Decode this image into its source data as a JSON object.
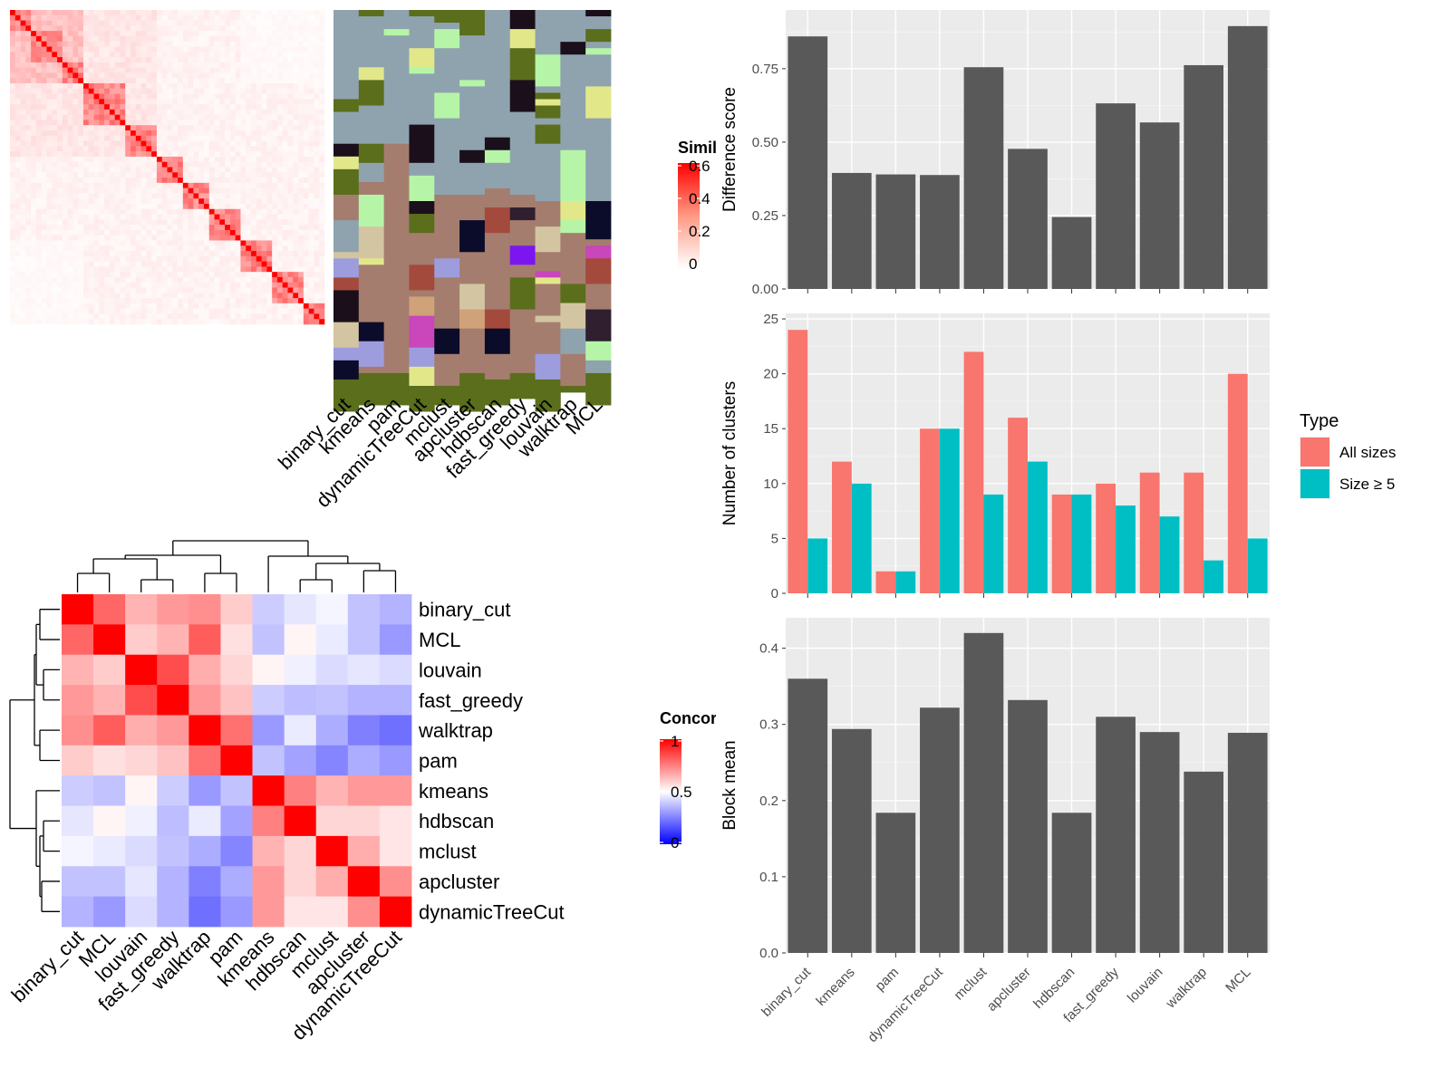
{
  "methods_bar": [
    "binary_cut",
    "kmeans",
    "pam",
    "dynamicTreeCut",
    "mclust",
    "apcluster",
    "hdbscan",
    "fast_greedy",
    "louvain",
    "walktrap",
    "MCL"
  ],
  "methods_top": [
    "binary_cut",
    "kmeans",
    "pam",
    "dynamicTreeCut",
    "mclust",
    "apcluster",
    "hdbscan",
    "fast_greedy",
    "louvain",
    "walktrap",
    "MCL"
  ],
  "methods_concordance": [
    "binary_cut",
    "MCL",
    "louvain",
    "fast_greedy",
    "walktrap",
    "pam",
    "kmeans",
    "hdbscan",
    "mclust",
    "apcluster",
    "dynamicTreeCut"
  ],
  "similarity_legend": {
    "title": "Similarity",
    "ticks": [
      "0.6",
      "0.4",
      "0.2",
      "0"
    ]
  },
  "concordance_legend": {
    "title": "Concordance",
    "ticks": [
      "1",
      "0.5",
      "0"
    ]
  },
  "type_legend": {
    "title": "Type",
    "items": [
      {
        "label": "All sizes",
        "color": "#F8766D"
      },
      {
        "label": "Size ≥ 5",
        "color": "#00BFC4"
      }
    ]
  },
  "chart_data": [
    {
      "type": "heatmap",
      "title": "",
      "description_matrix": "similarity matrix",
      "color_scale": {
        "low": "#ffffff",
        "high": "#ff0000",
        "range": [
          0,
          0.6
        ]
      }
    },
    {
      "type": "heatmap",
      "title": "",
      "columns": [
        "binary_cut",
        "kmeans",
        "pam",
        "dynamicTreeCut",
        "mclust",
        "apcluster",
        "hdbscan",
        "fast_greedy",
        "louvain",
        "walktrap",
        "MCL"
      ]
    },
    {
      "type": "bar",
      "ylabel": "Difference score",
      "categories": [
        "binary_cut",
        "kmeans",
        "pam",
        "dynamicTreeCut",
        "mclust",
        "apcluster",
        "hdbscan",
        "fast_greedy",
        "louvain",
        "walktrap",
        "MCL"
      ],
      "values": [
        0.86,
        0.395,
        0.39,
        0.388,
        0.755,
        0.477,
        0.245,
        0.632,
        0.567,
        0.762,
        0.895
      ],
      "ylim": [
        0,
        0.95
      ],
      "yticks": [
        "0.00",
        "0.25",
        "0.50",
        "0.75"
      ]
    },
    {
      "type": "bar",
      "ylabel": "Number of clusters",
      "categories": [
        "binary_cut",
        "kmeans",
        "pam",
        "dynamicTreeCut",
        "mclust",
        "apcluster",
        "hdbscan",
        "fast_greedy",
        "louvain",
        "walktrap",
        "MCL"
      ],
      "series": [
        {
          "name": "All sizes",
          "values": [
            24,
            12,
            2,
            15,
            22,
            16,
            9,
            10,
            11,
            11,
            20
          ]
        },
        {
          "name": "Size ≥ 5",
          "values": [
            5,
            10,
            2,
            15,
            9,
            12,
            9,
            8,
            7,
            3,
            5
          ]
        }
      ],
      "ylim": [
        0,
        25.5
      ],
      "yticks": [
        "0",
        "5",
        "10",
        "15",
        "20",
        "25"
      ]
    },
    {
      "type": "bar",
      "ylabel": "Block mean",
      "categories": [
        "binary_cut",
        "kmeans",
        "pam",
        "dynamicTreeCut",
        "mclust",
        "apcluster",
        "hdbscan",
        "fast_greedy",
        "louvain",
        "walktrap",
        "MCL"
      ],
      "values": [
        0.36,
        0.294,
        0.184,
        0.322,
        0.42,
        0.332,
        0.184,
        0.31,
        0.29,
        0.238,
        0.289
      ],
      "ylim": [
        0,
        0.44
      ],
      "yticks": [
        "0.0",
        "0.1",
        "0.2",
        "0.3",
        "0.4"
      ]
    },
    {
      "type": "heatmap",
      "labels": [
        "binary_cut",
        "MCL",
        "louvain",
        "fast_greedy",
        "walktrap",
        "pam",
        "kmeans",
        "hdbscan",
        "mclust",
        "apcluster",
        "dynamicTreeCut"
      ],
      "matrix": [
        [
          1.0,
          0.8,
          0.65,
          0.7,
          0.72,
          0.6,
          0.4,
          0.45,
          0.48,
          0.38,
          0.35
        ],
        [
          0.8,
          1.0,
          0.6,
          0.65,
          0.82,
          0.56,
          0.38,
          0.52,
          0.46,
          0.38,
          0.3
        ],
        [
          0.65,
          0.6,
          1.0,
          0.85,
          0.66,
          0.58,
          0.52,
          0.47,
          0.43,
          0.45,
          0.43
        ],
        [
          0.7,
          0.65,
          0.85,
          1.0,
          0.7,
          0.62,
          0.4,
          0.37,
          0.38,
          0.35,
          0.35
        ],
        [
          0.72,
          0.82,
          0.66,
          0.7,
          1.0,
          0.78,
          0.3,
          0.46,
          0.34,
          0.25,
          0.22
        ],
        [
          0.6,
          0.56,
          0.58,
          0.62,
          0.78,
          1.0,
          0.38,
          0.32,
          0.26,
          0.34,
          0.3
        ],
        [
          0.4,
          0.38,
          0.52,
          0.4,
          0.3,
          0.38,
          1.0,
          0.75,
          0.65,
          0.7,
          0.7
        ],
        [
          0.45,
          0.52,
          0.47,
          0.37,
          0.46,
          0.32,
          0.75,
          1.0,
          0.58,
          0.58,
          0.55
        ],
        [
          0.48,
          0.46,
          0.43,
          0.38,
          0.34,
          0.26,
          0.65,
          0.58,
          1.0,
          0.66,
          0.55
        ],
        [
          0.38,
          0.38,
          0.45,
          0.35,
          0.25,
          0.34,
          0.7,
          0.58,
          0.66,
          1.0,
          0.72
        ],
        [
          0.35,
          0.3,
          0.43,
          0.35,
          0.22,
          0.3,
          0.7,
          0.55,
          0.55,
          0.72,
          1.0
        ]
      ],
      "color_scale": {
        "low": "#0000ff",
        "mid": "#ffffff",
        "high": "#ff0000",
        "range": [
          0,
          1
        ]
      }
    }
  ]
}
